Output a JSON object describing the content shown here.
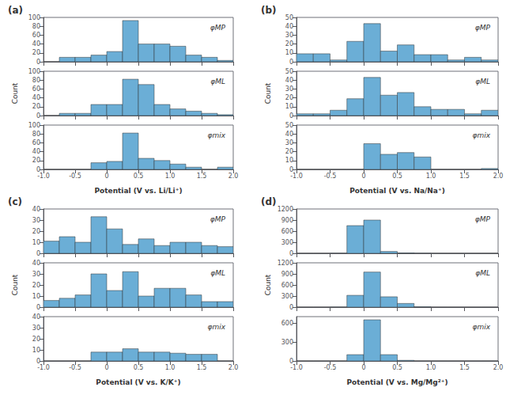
{
  "chart_data": [
    {
      "type": "histogram",
      "title": "(a)",
      "annotation": "φMP",
      "color": "#6baed6",
      "grid": false,
      "tick_labels": "y",
      "bins": [
        -1.0,
        -0.75,
        -0.5,
        -0.25,
        0.0,
        0.25,
        0.5,
        0.75,
        1.0,
        1.25,
        1.5,
        1.75,
        2.0
      ],
      "values": [
        0,
        10,
        10,
        15,
        23,
        93,
        40,
        40,
        35,
        15,
        10,
        3
      ],
      "xlim": [
        -1.0,
        2.0
      ],
      "xticks": [
        {
          "value": -1.0,
          "label": "-1.0"
        },
        -0.5,
        0,
        0.5,
        {
          "value": 1.0,
          "label": "1.0"
        },
        1.5,
        {
          "value": 2.0,
          "label": "2.0"
        }
      ],
      "ylim": [
        0,
        100
      ],
      "yticks": [
        0,
        20,
        40,
        60,
        80,
        100
      ]
    },
    {
      "type": "histogram",
      "annotation": "φML",
      "ylabel": "Count",
      "color": "#6baed6",
      "grid": false,
      "tick_labels": "y",
      "bins": [
        -1.0,
        -0.75,
        -0.5,
        -0.25,
        0.0,
        0.25,
        0.5,
        0.75,
        1.0,
        1.25,
        1.5,
        1.75,
        2.0
      ],
      "values": [
        0,
        5,
        5,
        25,
        25,
        82,
        70,
        25,
        15,
        10,
        5,
        2
      ],
      "xlim": [
        -1.0,
        2.0
      ],
      "xticks": [
        {
          "value": -1.0,
          "label": "-1.0"
        },
        -0.5,
        0,
        0.5,
        {
          "value": 1.0,
          "label": "1.0"
        },
        1.5,
        {
          "value": 2.0,
          "label": "2.0"
        }
      ],
      "ylim": [
        0,
        100
      ],
      "yticks": [
        0,
        20,
        40,
        60,
        80,
        100
      ]
    },
    {
      "type": "histogram",
      "annotation": "φmix",
      "xlabel": "Potential (V vs. Li/Li⁺)",
      "color": "#6baed6",
      "grid": false,
      "bins": [
        -1.0,
        -0.75,
        -0.5,
        -0.25,
        0.0,
        0.25,
        0.5,
        0.75,
        1.0,
        1.25,
        1.5,
        1.75,
        2.0
      ],
      "values": [
        0,
        0,
        0,
        15,
        18,
        82,
        25,
        20,
        12,
        5,
        0,
        5
      ],
      "xlim": [
        -1.0,
        2.0
      ],
      "xticks": [
        {
          "value": -1.0,
          "label": "-1.0"
        },
        -0.5,
        0,
        0.5,
        {
          "value": 1.0,
          "label": "1.0"
        },
        1.5,
        {
          "value": 2.0,
          "label": "2.0"
        }
      ],
      "ylim": [
        0,
        100
      ],
      "yticks": [
        0,
        20,
        40,
        60,
        80,
        100
      ]
    },
    {
      "type": "histogram",
      "title": "(b)",
      "annotation": "φMP",
      "color": "#6baed6",
      "grid": false,
      "tick_labels": "y",
      "bins": [
        -1.0,
        -0.75,
        -0.5,
        -0.25,
        0.0,
        0.25,
        0.5,
        0.75,
        1.0,
        1.25,
        1.5,
        1.75,
        2.0
      ],
      "values": [
        9,
        9,
        2,
        23,
        43,
        12,
        19,
        8,
        8,
        2,
        5,
        2
      ],
      "xlim": [
        -1.0,
        2.0
      ],
      "xticks": [
        {
          "value": -1.0,
          "label": "-1.0"
        },
        -0.5,
        0,
        0.5,
        {
          "value": 1.0,
          "label": "1.0"
        },
        1.5,
        {
          "value": 2.0,
          "label": "2.0"
        }
      ],
      "ylim": [
        0,
        50
      ],
      "yticks": [
        0,
        10,
        20,
        30,
        40,
        50
      ]
    },
    {
      "type": "histogram",
      "annotation": "φML",
      "ylabel": "Count",
      "color": "#6baed6",
      "grid": false,
      "tick_labels": "y",
      "bins": [
        -1.0,
        -0.75,
        -0.5,
        -0.25,
        0.0,
        0.25,
        0.5,
        0.75,
        1.0,
        1.25,
        1.5,
        1.75,
        2.0
      ],
      "values": [
        2,
        2,
        6,
        19,
        43,
        23,
        26,
        10,
        7,
        7,
        2,
        6
      ],
      "xlim": [
        -1.0,
        2.0
      ],
      "xticks": [
        {
          "value": -1.0,
          "label": "-1.0"
        },
        -0.5,
        0,
        0.5,
        {
          "value": 1.0,
          "label": "1.0"
        },
        1.5,
        {
          "value": 2.0,
          "label": "2.0"
        }
      ],
      "ylim": [
        0,
        50
      ],
      "yticks": [
        0,
        10,
        20,
        30,
        40,
        50
      ]
    },
    {
      "type": "histogram",
      "annotation": "φmix",
      "xlabel": "Potential (V vs. Na/Na⁺)",
      "color": "#6baed6",
      "grid": false,
      "bins": [
        -1.0,
        -0.75,
        -0.5,
        -0.25,
        0.0,
        0.25,
        0.5,
        0.75,
        1.0,
        1.25,
        1.5,
        1.75,
        2.0
      ],
      "values": [
        0,
        0,
        0,
        0,
        29,
        17,
        19,
        14,
        0,
        0,
        0,
        1
      ],
      "xlim": [
        -1.0,
        2.0
      ],
      "xticks": [
        {
          "value": -1.0,
          "label": "-1.0"
        },
        -0.5,
        0,
        0.5,
        {
          "value": 1.0,
          "label": "1.0"
        },
        1.5,
        {
          "value": 2.0,
          "label": "2.0"
        }
      ],
      "ylim": [
        0,
        50
      ],
      "yticks": [
        0,
        10,
        20,
        30,
        40,
        50
      ]
    },
    {
      "type": "histogram",
      "title": "(c)",
      "annotation": "φMP",
      "color": "#6baed6",
      "grid": false,
      "tick_labels": "y",
      "bins": [
        -1.0,
        -0.75,
        -0.5,
        -0.25,
        0.0,
        0.25,
        0.5,
        0.75,
        1.0,
        1.25,
        1.5,
        1.75,
        2.0
      ],
      "values": [
        11,
        15,
        10,
        33,
        22,
        8,
        13,
        7,
        10,
        10,
        7,
        6
      ],
      "xlim": [
        -1.0,
        2.0
      ],
      "xticks": [
        {
          "value": -1.0,
          "label": "-1.0"
        },
        -0.5,
        0,
        0.5,
        {
          "value": 1.0,
          "label": "1.0"
        },
        1.5,
        {
          "value": 2.0,
          "label": "2.0"
        }
      ],
      "ylim": [
        0,
        40
      ],
      "yticks": [
        0,
        10,
        20,
        30,
        40
      ]
    },
    {
      "type": "histogram",
      "annotation": "φML",
      "ylabel": "Count",
      "color": "#6baed6",
      "grid": false,
      "tick_labels": "y",
      "bins": [
        -1.0,
        -0.75,
        -0.5,
        -0.25,
        0.0,
        0.25,
        0.5,
        0.75,
        1.0,
        1.25,
        1.5,
        1.75,
        2.0
      ],
      "values": [
        6,
        8,
        11,
        30,
        15,
        32,
        10,
        17,
        17,
        11,
        5,
        5
      ],
      "xlim": [
        -1.0,
        2.0
      ],
      "xticks": [
        {
          "value": -1.0,
          "label": "-1.0"
        },
        -0.5,
        0,
        0.5,
        {
          "value": 1.0,
          "label": "1.0"
        },
        1.5,
        {
          "value": 2.0,
          "label": "2.0"
        }
      ],
      "ylim": [
        0,
        40
      ],
      "yticks": [
        0,
        10,
        20,
        30,
        40
      ]
    },
    {
      "type": "histogram",
      "annotation": "φmix",
      "xlabel": "Potential (V vs. K/K⁺)",
      "color": "#6baed6",
      "grid": false,
      "bins": [
        -1.0,
        -0.75,
        -0.5,
        -0.25,
        0.0,
        0.25,
        0.5,
        0.75,
        1.0,
        1.25,
        1.5,
        1.75,
        2.0
      ],
      "values": [
        0,
        0,
        0,
        8,
        8,
        11,
        8,
        8,
        7,
        6,
        6,
        0
      ],
      "xlim": [
        -1.0,
        2.0
      ],
      "xticks": [
        {
          "value": -1.0,
          "label": "-1.0"
        },
        -0.5,
        0,
        0.5,
        {
          "value": 1.0,
          "label": "1.0"
        },
        1.5,
        {
          "value": 2.0,
          "label": "2.0"
        }
      ],
      "ylim": [
        0,
        40
      ],
      "yticks": [
        0,
        10,
        20,
        30,
        40
      ]
    },
    {
      "type": "histogram",
      "title": "(d)",
      "annotation": "φMP",
      "color": "#6baed6",
      "grid": false,
      "tick_labels": "y",
      "bins": [
        -1.0,
        -0.75,
        -0.5,
        -0.25,
        0.0,
        0.25,
        0.5,
        0.75,
        1.0,
        1.25,
        1.5,
        1.75,
        2.0
      ],
      "values": [
        0,
        0,
        3,
        750,
        900,
        50,
        10,
        3,
        0,
        0,
        0,
        0
      ],
      "xlim": [
        -1.0,
        2.0
      ],
      "xticks": [
        {
          "value": -1.0,
          "label": "-1.0"
        },
        -0.5,
        0,
        0.5,
        {
          "value": 1.0,
          "label": "1.0"
        },
        1.5,
        {
          "value": 2.0,
          "label": "2.0"
        }
      ],
      "ylim": [
        0,
        1200
      ],
      "yticks": [
        0,
        300,
        600,
        900,
        1200
      ]
    },
    {
      "type": "histogram",
      "annotation": "φML",
      "ylabel": "Count",
      "color": "#6baed6",
      "grid": false,
      "tick_labels": "y",
      "bins": [
        -1.0,
        -0.75,
        -0.5,
        -0.25,
        0.0,
        0.25,
        0.5,
        0.75,
        1.0,
        1.25,
        1.5,
        1.75,
        2.0
      ],
      "values": [
        0,
        0,
        3,
        320,
        950,
        280,
        100,
        10,
        0,
        0,
        0,
        0
      ],
      "xlim": [
        -1.0,
        2.0
      ],
      "xticks": [
        {
          "value": -1.0,
          "label": "-1.0"
        },
        -0.5,
        0,
        0.5,
        {
          "value": 1.0,
          "label": "1.0"
        },
        1.5,
        {
          "value": 2.0,
          "label": "2.0"
        }
      ],
      "ylim": [
        0,
        1200
      ],
      "yticks": [
        0,
        300,
        600,
        900,
        1200
      ]
    },
    {
      "type": "histogram",
      "annotation": "φmix",
      "xlabel": "Potential (V vs. Mg/Mg²⁺)",
      "color": "#6baed6",
      "grid": false,
      "bins": [
        -1.0,
        -0.75,
        -0.5,
        -0.25,
        0.0,
        0.25,
        0.5,
        0.75,
        1.0,
        1.25,
        1.5,
        1.75,
        2.0
      ],
      "values": [
        0,
        0,
        0,
        100,
        650,
        100,
        10,
        0,
        0,
        0,
        0,
        0
      ],
      "xlim": [
        -1.0,
        2.0
      ],
      "xticks": [
        {
          "value": -1.0,
          "label": "-1.0"
        },
        -0.5,
        0,
        0.5,
        {
          "value": 1.0,
          "label": "1.0"
        },
        1.5,
        {
          "value": 2.0,
          "label": "2.0"
        }
      ],
      "ylim": [
        0,
        700
      ],
      "yticks": [
        0,
        300,
        600
      ]
    }
  ]
}
